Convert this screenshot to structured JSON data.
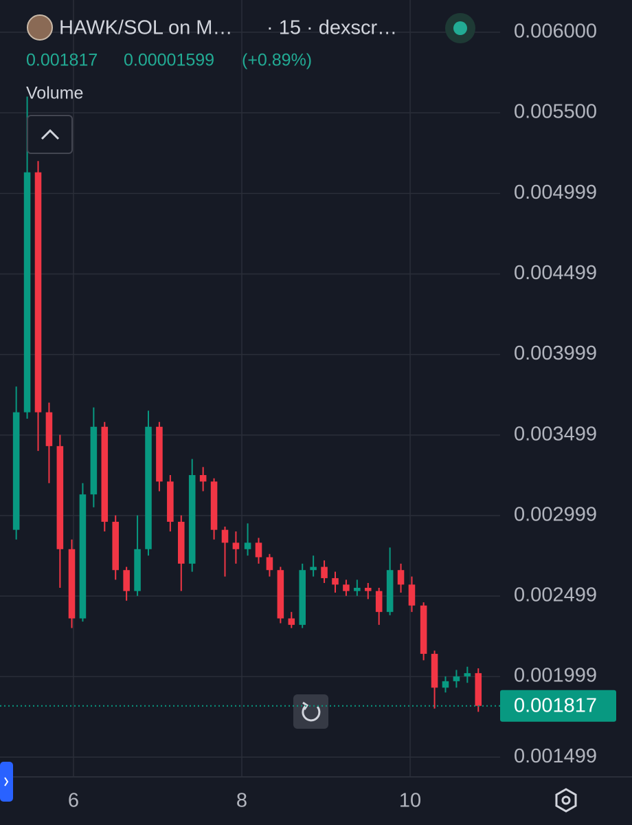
{
  "chart_data": {
    "type": "candlestick",
    "title": "HAWK/SOL on M…",
    "subtitle": "· 15 · dexscr…",
    "last_price": 0.001817,
    "change": 1.599e-05,
    "change_label": "(+0.89%)",
    "pane_label": "Volume",
    "up_color": "#089981",
    "down_color": "#f23645",
    "grid": true,
    "xlim": [
      5.127,
      11.069
    ],
    "xticks": [
      6,
      8,
      10
    ],
    "ylim": [
      0.001376,
      0.0062
    ],
    "yticks": [
      {
        "value": 0.006,
        "label": "0.006000"
      },
      {
        "value": 0.0055,
        "label": "0.005500"
      },
      0.004999,
      0.004499,
      0.003999,
      0.003499,
      0.002999,
      0.002499,
      0.001999,
      0.001499
    ],
    "x": [
      5.32,
      5.45,
      5.58,
      5.71,
      5.84,
      5.98,
      6.11,
      6.24,
      6.37,
      6.5,
      6.63,
      6.76,
      6.89,
      7.02,
      7.15,
      7.28,
      7.41,
      7.54,
      7.67,
      7.8,
      7.93,
      8.07,
      8.2,
      8.33,
      8.46,
      8.59,
      8.72,
      8.85,
      8.98,
      9.11,
      9.24,
      9.37,
      9.5,
      9.63,
      9.76,
      9.89,
      10.02,
      10.16,
      10.29,
      10.42,
      10.55,
      10.68,
      10.81
    ],
    "open": [
      0.00291,
      0.00364,
      0.00513,
      0.00364,
      0.00343,
      0.00279,
      0.00236,
      0.00313,
      0.00355,
      0.00296,
      0.00266,
      0.00253,
      0.00279,
      0.00355,
      0.00321,
      0.00296,
      0.0027,
      0.00325,
      0.00321,
      0.00291,
      0.00283,
      0.00279,
      0.00283,
      0.00274,
      0.00266,
      0.00236,
      0.00232,
      0.00266,
      0.00268,
      0.00261,
      0.00257,
      0.00253,
      0.00255,
      0.00253,
      0.0024,
      0.00266,
      0.00257,
      0.00244,
      0.00214,
      0.00193,
      0.00197,
      0.002,
      0.00202
    ],
    "high": [
      0.0038,
      0.0056,
      0.0052,
      0.0037,
      0.0035,
      0.00285,
      0.0032,
      0.00367,
      0.00358,
      0.003,
      0.00268,
      0.003,
      0.00365,
      0.00358,
      0.00325,
      0.003,
      0.00335,
      0.0033,
      0.00323,
      0.00293,
      0.0029,
      0.00295,
      0.00286,
      0.00276,
      0.00268,
      0.0024,
      0.0027,
      0.00275,
      0.00272,
      0.00265,
      0.0026,
      0.0026,
      0.00258,
      0.00255,
      0.0028,
      0.0027,
      0.00262,
      0.00246,
      0.00216,
      0.002,
      0.00204,
      0.00206,
      0.00205
    ],
    "low": [
      0.00285,
      0.0036,
      0.0034,
      0.0032,
      0.00255,
      0.0023,
      0.00234,
      0.00305,
      0.0029,
      0.0026,
      0.00247,
      0.0025,
      0.00275,
      0.00315,
      0.0029,
      0.00253,
      0.00265,
      0.00315,
      0.00285,
      0.00262,
      0.0027,
      0.00275,
      0.0027,
      0.00262,
      0.00233,
      0.0023,
      0.0023,
      0.00262,
      0.00258,
      0.00252,
      0.0025,
      0.0025,
      0.00248,
      0.00232,
      0.00238,
      0.00252,
      0.0024,
      0.0021,
      0.0018,
      0.0019,
      0.00193,
      0.00196,
      0.00178
    ],
    "close": [
      0.00364,
      0.00513,
      0.00364,
      0.00343,
      0.00279,
      0.00236,
      0.00313,
      0.00355,
      0.00296,
      0.00266,
      0.00253,
      0.00279,
      0.00355,
      0.00321,
      0.00296,
      0.0027,
      0.00325,
      0.00321,
      0.00291,
      0.00283,
      0.00279,
      0.00283,
      0.00274,
      0.00266,
      0.00236,
      0.00232,
      0.00266,
      0.00268,
      0.00261,
      0.00257,
      0.00253,
      0.00255,
      0.00253,
      0.0024,
      0.00266,
      0.00257,
      0.00244,
      0.00214,
      0.00193,
      0.00197,
      0.002,
      0.00202,
      0.001817
    ]
  }
}
